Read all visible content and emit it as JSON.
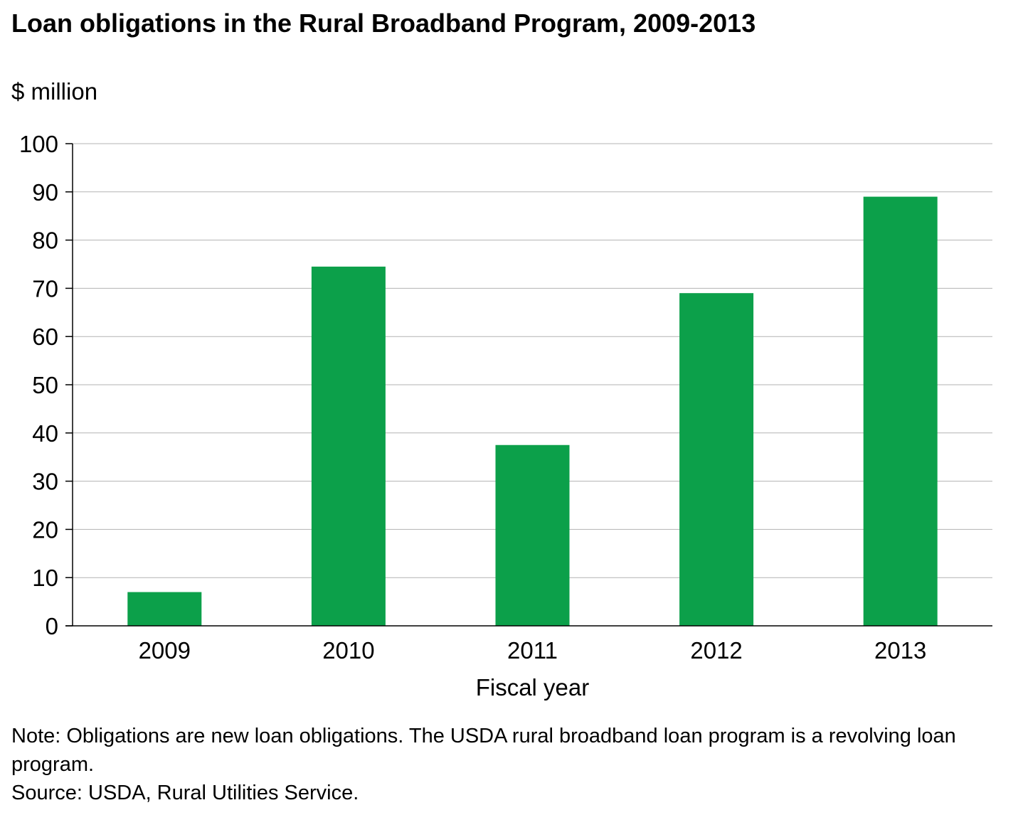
{
  "chart_data": {
    "type": "bar",
    "title": "Loan obligations in the Rural Broadband Program, 2009-2013",
    "ylabel": "$ million",
    "xlabel": "Fiscal year",
    "categories": [
      "2009",
      "2010",
      "2011",
      "2012",
      "2013"
    ],
    "values": [
      7,
      74.5,
      37.5,
      69,
      89
    ],
    "ylim": [
      0,
      100
    ],
    "yticks": [
      0,
      10,
      20,
      30,
      40,
      50,
      60,
      70,
      80,
      90,
      100
    ],
    "grid": true,
    "bar_color": "#0ca04a",
    "legend": "none"
  },
  "notes": {
    "note": "Note:  Obligations are new loan obligations. The USDA rural broadband loan program is a revolving loan program.",
    "source": "Source:  USDA, Rural Utilities Service."
  }
}
